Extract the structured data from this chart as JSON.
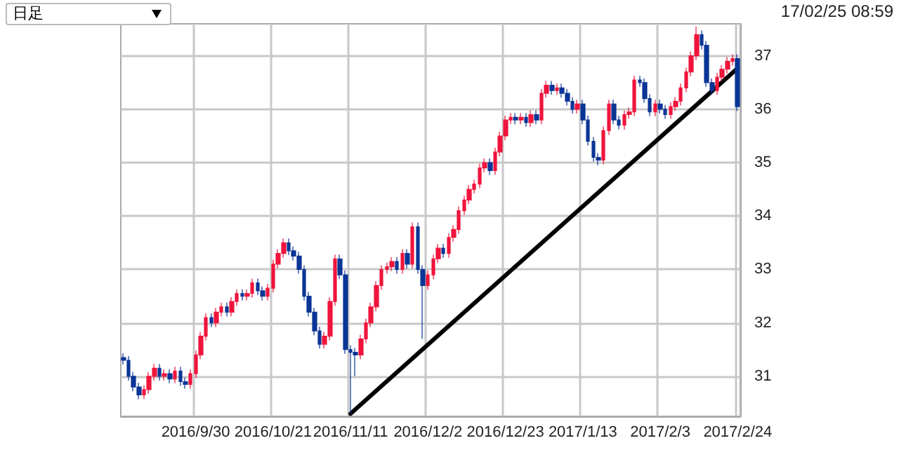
{
  "chart_data": {
    "type": "candlestick",
    "annotations": [
      "日足",
      "17/02/25 08:59"
    ],
    "categories": [
      null,
      null,
      null,
      null,
      null,
      null,
      null,
      null,
      null,
      null,
      null,
      null,
      null,
      null,
      "2016/9/30",
      null,
      null,
      null,
      null,
      null,
      null,
      null,
      null,
      null,
      null,
      null,
      null,
      null,
      null,
      "2016/10/21",
      null,
      null,
      null,
      null,
      null,
      null,
      null,
      null,
      null,
      null,
      null,
      null,
      null,
      null,
      "2016/11/11",
      null,
      null,
      null,
      null,
      null,
      null,
      null,
      null,
      null,
      null,
      null,
      null,
      null,
      null,
      "2016/12/2",
      null,
      null,
      null,
      null,
      null,
      null,
      null,
      null,
      null,
      null,
      null,
      null,
      null,
      null,
      "2016/12/23",
      null,
      null,
      null,
      null,
      null,
      null,
      null,
      null,
      null,
      null,
      null,
      null,
      null,
      null,
      "2017/1/13",
      null,
      null,
      null,
      null,
      null,
      null,
      null,
      null,
      null,
      null,
      null,
      null,
      null,
      null,
      "2017/2/3",
      null,
      null,
      null,
      null,
      null,
      null,
      null,
      null,
      null,
      null,
      null,
      null,
      null,
      null,
      "2017/2/24"
    ],
    "ohlc": [
      [
        31.35,
        31.43,
        31.22,
        31.3
      ],
      [
        31.3,
        31.38,
        30.92,
        31.0
      ],
      [
        31.0,
        31.08,
        30.72,
        30.8
      ],
      [
        30.8,
        30.88,
        30.57,
        30.65
      ],
      [
        30.65,
        30.83,
        30.57,
        30.75
      ],
      [
        30.75,
        31.08,
        30.67,
        31.0
      ],
      [
        31.0,
        31.23,
        30.92,
        31.15
      ],
      [
        31.15,
        31.23,
        30.92,
        31.0
      ],
      [
        31.0,
        31.13,
        30.92,
        31.05
      ],
      [
        31.05,
        31.13,
        30.87,
        30.95
      ],
      [
        30.95,
        31.18,
        30.87,
        31.1
      ],
      [
        31.1,
        31.18,
        30.82,
        30.9
      ],
      [
        30.9,
        30.98,
        30.77,
        30.85
      ],
      [
        30.85,
        31.13,
        30.77,
        31.05
      ],
      [
        31.05,
        31.48,
        30.97,
        31.4
      ],
      [
        31.4,
        31.83,
        31.32,
        31.75
      ],
      [
        31.75,
        32.18,
        31.67,
        32.1
      ],
      [
        32.1,
        32.18,
        31.92,
        32.0
      ],
      [
        32.0,
        32.28,
        31.92,
        32.2
      ],
      [
        32.2,
        32.38,
        32.12,
        32.3
      ],
      [
        32.3,
        32.38,
        32.12,
        32.2
      ],
      [
        32.2,
        32.48,
        32.12,
        32.4
      ],
      [
        32.4,
        32.63,
        32.32,
        32.55
      ],
      [
        32.55,
        32.63,
        32.42,
        32.5
      ],
      [
        32.5,
        32.63,
        32.42,
        32.55
      ],
      [
        32.55,
        32.83,
        32.47,
        32.75
      ],
      [
        32.75,
        32.83,
        32.52,
        32.6
      ],
      [
        32.6,
        32.68,
        32.42,
        32.5
      ],
      [
        32.5,
        32.73,
        32.42,
        32.65
      ],
      [
        32.65,
        33.18,
        32.57,
        33.1
      ],
      [
        33.1,
        33.38,
        33.02,
        33.3
      ],
      [
        33.3,
        33.58,
        33.22,
        33.5
      ],
      [
        33.5,
        33.58,
        33.27,
        33.35
      ],
      [
        33.35,
        33.43,
        33.17,
        33.25
      ],
      [
        33.25,
        33.33,
        32.92,
        33.0
      ],
      [
        33.0,
        33.08,
        32.42,
        32.5
      ],
      [
        32.5,
        32.58,
        32.12,
        32.2
      ],
      [
        32.2,
        32.28,
        31.77,
        31.85
      ],
      [
        31.85,
        31.93,
        31.52,
        31.6
      ],
      [
        31.6,
        31.83,
        31.52,
        31.75
      ],
      [
        31.75,
        32.48,
        31.67,
        32.4
      ],
      [
        32.4,
        33.28,
        32.32,
        33.2
      ],
      [
        33.2,
        33.28,
        32.82,
        32.9
      ],
      [
        32.9,
        32.98,
        31.42,
        31.5
      ],
      [
        31.5,
        31.58,
        30.3,
        31.45
      ],
      [
        31.45,
        31.53,
        31.0,
        31.4
      ],
      [
        31.4,
        31.78,
        31.32,
        31.7
      ],
      [
        31.7,
        32.08,
        31.62,
        32.0
      ],
      [
        32.0,
        32.38,
        31.92,
        32.3
      ],
      [
        32.3,
        32.78,
        32.22,
        32.7
      ],
      [
        32.7,
        33.08,
        32.62,
        33.0
      ],
      [
        33.0,
        33.13,
        32.92,
        33.05
      ],
      [
        33.05,
        33.23,
        32.97,
        33.15
      ],
      [
        33.15,
        33.23,
        32.92,
        33.0
      ],
      [
        33.0,
        33.38,
        32.92,
        33.3
      ],
      [
        33.3,
        33.38,
        33.02,
        33.1
      ],
      [
        33.1,
        33.88,
        33.02,
        33.8
      ],
      [
        33.8,
        33.88,
        32.92,
        33.0
      ],
      [
        33.0,
        33.08,
        31.7,
        32.7
      ],
      [
        32.7,
        32.98,
        32.62,
        32.9
      ],
      [
        32.9,
        33.28,
        32.82,
        33.2
      ],
      [
        33.2,
        33.48,
        33.12,
        33.4
      ],
      [
        33.4,
        33.48,
        33.22,
        33.3
      ],
      [
        33.3,
        33.68,
        33.22,
        33.6
      ],
      [
        33.6,
        33.83,
        33.52,
        33.75
      ],
      [
        33.75,
        34.18,
        33.67,
        34.1
      ],
      [
        34.1,
        34.38,
        34.02,
        34.3
      ],
      [
        34.3,
        34.58,
        34.22,
        34.5
      ],
      [
        34.5,
        34.68,
        34.42,
        34.6
      ],
      [
        34.6,
        34.98,
        34.52,
        34.9
      ],
      [
        34.9,
        35.08,
        34.82,
        35.0
      ],
      [
        35.0,
        35.08,
        34.77,
        34.85
      ],
      [
        34.85,
        35.28,
        34.77,
        35.2
      ],
      [
        35.2,
        35.58,
        35.12,
        35.5
      ],
      [
        35.5,
        35.88,
        35.42,
        35.8
      ],
      [
        35.8,
        35.93,
        35.72,
        35.85
      ],
      [
        35.85,
        35.93,
        35.72,
        35.8
      ],
      [
        35.8,
        35.93,
        35.72,
        35.85
      ],
      [
        35.85,
        35.93,
        35.67,
        35.75
      ],
      [
        35.75,
        35.98,
        35.67,
        35.9
      ],
      [
        35.9,
        35.98,
        35.72,
        35.8
      ],
      [
        35.8,
        36.38,
        35.72,
        36.3
      ],
      [
        36.3,
        36.53,
        36.22,
        36.45
      ],
      [
        36.45,
        36.53,
        36.27,
        36.35
      ],
      [
        36.35,
        36.48,
        36.27,
        36.4
      ],
      [
        36.4,
        36.48,
        36.22,
        36.3
      ],
      [
        36.3,
        36.38,
        36.07,
        36.15
      ],
      [
        36.15,
        36.23,
        35.92,
        36.0
      ],
      [
        36.0,
        36.18,
        35.92,
        36.1
      ],
      [
        36.1,
        36.18,
        35.72,
        35.8
      ],
      [
        35.8,
        35.88,
        35.32,
        35.4
      ],
      [
        35.4,
        35.48,
        35.02,
        35.1
      ],
      [
        35.1,
        35.18,
        34.95,
        35.05
      ],
      [
        35.05,
        35.68,
        34.97,
        35.6
      ],
      [
        35.6,
        36.18,
        35.52,
        36.1
      ],
      [
        36.1,
        36.18,
        35.72,
        35.8
      ],
      [
        35.8,
        35.88,
        35.62,
        35.7
      ],
      [
        35.7,
        35.98,
        35.62,
        35.9
      ],
      [
        35.9,
        36.03,
        35.82,
        35.95
      ],
      [
        35.95,
        36.63,
        35.87,
        36.55
      ],
      [
        36.55,
        36.63,
        36.42,
        36.5
      ],
      [
        36.5,
        36.58,
        36.12,
        36.2
      ],
      [
        36.2,
        36.28,
        35.87,
        35.95
      ],
      [
        35.95,
        36.18,
        35.87,
        36.1
      ],
      [
        36.1,
        36.18,
        35.92,
        36.0
      ],
      [
        36.0,
        36.08,
        35.82,
        35.9
      ],
      [
        35.9,
        36.13,
        35.82,
        36.05
      ],
      [
        36.05,
        36.23,
        35.97,
        36.15
      ],
      [
        36.15,
        36.48,
        36.07,
        36.4
      ],
      [
        36.4,
        36.78,
        36.32,
        36.7
      ],
      [
        36.7,
        37.08,
        36.62,
        37.0
      ],
      [
        37.0,
        37.55,
        36.92,
        37.4
      ],
      [
        37.4,
        37.48,
        37.12,
        37.2
      ],
      [
        37.2,
        37.28,
        36.42,
        36.5
      ],
      [
        36.5,
        36.58,
        36.27,
        36.35
      ],
      [
        36.35,
        36.68,
        36.27,
        36.6
      ],
      [
        36.6,
        36.83,
        36.52,
        36.75
      ],
      [
        36.75,
        36.98,
        36.67,
        36.9
      ],
      [
        36.9,
        37.03,
        36.82,
        36.95
      ],
      [
        36.95,
        37.03,
        35.97,
        36.05
      ]
    ],
    "colors": [
      "#0a3596",
      "#0a3596",
      "#0a3596",
      "#0a3596",
      "#f0143c",
      "#f0143c",
      "#f0143c",
      "#0a3596",
      "#f0143c",
      "#0a3596",
      "#f0143c",
      "#0a3596",
      "#0a3596",
      "#f0143c",
      "#f0143c",
      "#f0143c",
      "#f0143c",
      "#0a3596",
      "#f0143c",
      "#f0143c",
      "#0a3596",
      "#f0143c",
      "#f0143c",
      "#0a3596",
      "#f0143c",
      "#f0143c",
      "#0a3596",
      "#0a3596",
      "#f0143c",
      "#f0143c",
      "#f0143c",
      "#f0143c",
      "#0a3596",
      "#0a3596",
      "#0a3596",
      "#0a3596",
      "#0a3596",
      "#0a3596",
      "#0a3596",
      "#f0143c",
      "#f0143c",
      "#f0143c",
      "#0a3596",
      "#0a3596",
      "#0a3596",
      "#0a3596",
      "#f0143c",
      "#f0143c",
      "#f0143c",
      "#f0143c",
      "#f0143c",
      "#f0143c",
      "#f0143c",
      "#0a3596",
      "#f0143c",
      "#0a3596",
      "#f0143c",
      "#0a3596",
      "#0a3596",
      "#f0143c",
      "#f0143c",
      "#f0143c",
      "#0a3596",
      "#f0143c",
      "#f0143c",
      "#f0143c",
      "#f0143c",
      "#f0143c",
      "#f0143c",
      "#f0143c",
      "#f0143c",
      "#0a3596",
      "#f0143c",
      "#f0143c",
      "#f0143c",
      "#f0143c",
      "#0a3596",
      "#f0143c",
      "#0a3596",
      "#f0143c",
      "#0a3596",
      "#f0143c",
      "#f0143c",
      "#0a3596",
      "#f0143c",
      "#0a3596",
      "#0a3596",
      "#0a3596",
      "#f0143c",
      "#0a3596",
      "#0a3596",
      "#0a3596",
      "#0a3596",
      "#f0143c",
      "#f0143c",
      "#0a3596",
      "#0a3596",
      "#f0143c",
      "#f0143c",
      "#f0143c",
      "#0a3596",
      "#0a3596",
      "#0a3596",
      "#f0143c",
      "#0a3596",
      "#0a3596",
      "#f0143c",
      "#f0143c",
      "#f0143c",
      "#f0143c",
      "#f0143c",
      "#f0143c",
      "#0a3596",
      "#0a3596",
      "#0a3596",
      "#f0143c",
      "#f0143c",
      "#f0143c",
      "#f0143c",
      "#0a3596"
    ],
    "series": [
      {
        "type": "line",
        "x": [
          "2016/11/11",
          "2017/2/24"
        ],
        "values": [
          30.3,
          36.77
        ],
        "color": "#000000"
      }
    ],
    "ylim": [
      30.25,
      37.6
    ],
    "yticks": [
      31,
      32,
      33,
      34,
      35,
      36,
      37
    ],
    "grid": true
  }
}
